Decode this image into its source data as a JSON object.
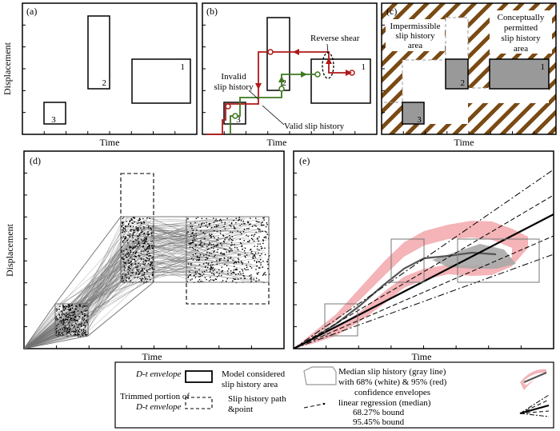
{
  "panels": {
    "a": {
      "label": "(a)",
      "xlabel": "Time",
      "ylabel": "Displacement",
      "boxes": [
        "1",
        "2",
        "3"
      ]
    },
    "b": {
      "label": "(b)",
      "xlabel": "Time",
      "boxes": [
        "1",
        "2",
        "3"
      ],
      "annotations": {
        "reverse_shear": "Reverse shear",
        "invalid_1": "Invalid",
        "invalid_2": "slip history",
        "valid": "Valid slip history"
      }
    },
    "c": {
      "label": "(c)",
      "xlabel": "Time",
      "boxes": [
        "1",
        "2",
        "3"
      ],
      "annotations": {
        "impermissible": [
          "Impermissible",
          "slip history",
          "area"
        ],
        "permitted": [
          "Conceptually",
          "permitted",
          "slip history",
          "area"
        ]
      }
    },
    "d": {
      "label": "(d)",
      "xlabel": "Time",
      "ylabel": "Displacement"
    },
    "e": {
      "label": "(e)",
      "xlabel": "Time"
    }
  },
  "legend": {
    "envelope": "D-t envelope",
    "trimmed": [
      "Trimmed portion of",
      "D-t envelope"
    ],
    "model_area": [
      "Model considered",
      "slip history area"
    ],
    "path_point": [
      "Slip history path",
      "&point"
    ],
    "median": [
      "Median slip history (gray line)",
      "with 68% (white) & 95% (red)",
      "confidence envelopes"
    ],
    "regression": [
      "linear regression (median)",
      "68.27% bound",
      "95.45% bound"
    ]
  },
  "colors": {
    "red_path": "#b01818",
    "green_path": "#3d7a1f",
    "hatch": "#7a4a14",
    "pink_env": "#f4b4b8",
    "gray_env": "#a8a8a8"
  }
}
